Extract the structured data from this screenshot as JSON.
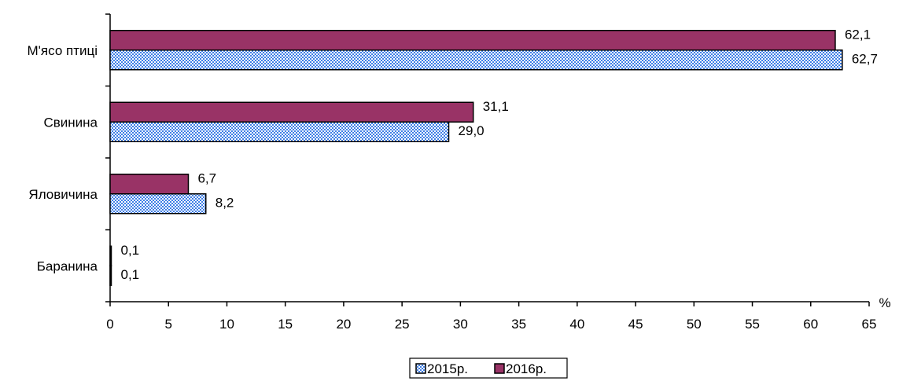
{
  "chart_data": {
    "type": "bar",
    "orientation": "horizontal",
    "categories": [
      "М'ясо птиці",
      "Свинина",
      "Яловичина",
      "Баранина"
    ],
    "series": [
      {
        "name": "2015р.",
        "values": [
          62.7,
          29.0,
          8.2,
          0.1
        ],
        "value_labels": [
          "62,7",
          "29,0",
          "8,2",
          "0,1"
        ],
        "color": "#3f7fe6",
        "pattern": "checkered"
      },
      {
        "name": "2016р.",
        "values": [
          62.1,
          31.1,
          6.7,
          0.1
        ],
        "value_labels": [
          "62,1",
          "31,1",
          "6,7",
          "0,1"
        ],
        "color": "#993366",
        "pattern": "solid"
      }
    ],
    "x_ticks": [
      "0",
      "5",
      "10",
      "15",
      "20",
      "25",
      "30",
      "35",
      "40",
      "45",
      "50",
      "55",
      "60",
      "65"
    ],
    "xlim": [
      0,
      65
    ],
    "xlabel": "%",
    "ylabel": "",
    "title": "",
    "grid": false,
    "legend": {
      "placement": "bottom-center"
    }
  }
}
